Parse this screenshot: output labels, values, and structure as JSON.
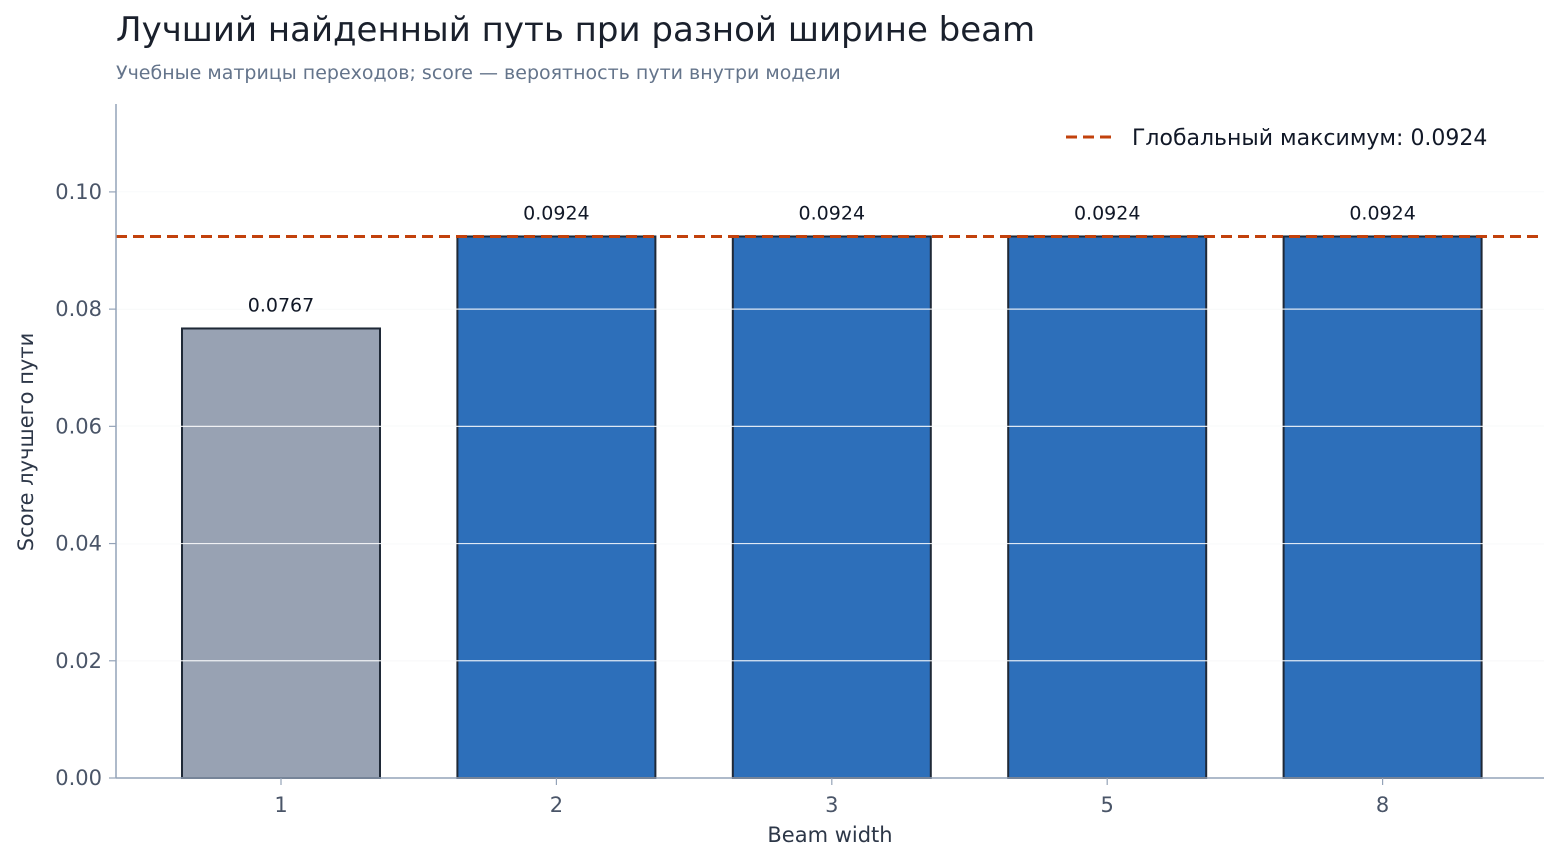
{
  "chart_data": {
    "type": "bar",
    "title": "Лучший найденный путь при разной ширине beam",
    "subtitle": "Учебные матрицы переходов; score — вероятность пути внутри модели",
    "xlabel": "Beam width",
    "ylabel": "Score лучшего пути",
    "categories": [
      "1",
      "2",
      "3",
      "5",
      "8"
    ],
    "values": [
      0.0767,
      0.0924,
      0.0924,
      0.0924,
      0.0924
    ],
    "data_labels": [
      "0.0767",
      "0.0924",
      "0.0924",
      "0.0924",
      "0.0924"
    ],
    "bar_colors": [
      "#98a2b3",
      "#2d6fba",
      "#2d6fba",
      "#2d6fba",
      "#2d6fba"
    ],
    "bar_edge_color": "#1f2937",
    "ylim": [
      0,
      0.115
    ],
    "yticks": [
      0.0,
      0.02,
      0.04,
      0.06,
      0.08,
      0.1
    ],
    "ytick_labels": [
      "0.00",
      "0.02",
      "0.04",
      "0.06",
      "0.08",
      "0.10"
    ],
    "grid": true,
    "reference_line": {
      "value": 0.0924,
      "label": "Глобальный максимум: 0.0924",
      "color": "#c2410c",
      "style": "dashed"
    },
    "legend": {
      "position": "top-right"
    }
  }
}
